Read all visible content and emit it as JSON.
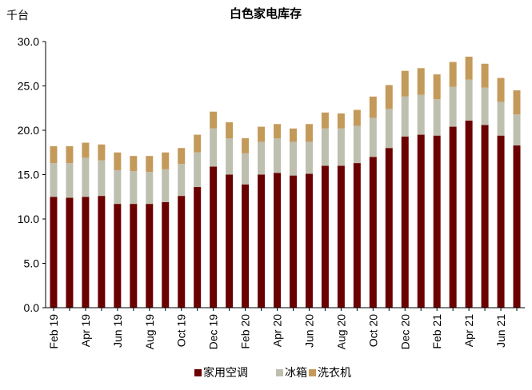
{
  "chart_data": {
    "type": "bar",
    "stacked": true,
    "title": "白色家电库存",
    "unit_label": "千台",
    "ylim": [
      0,
      30
    ],
    "y_ticks": [
      "0.0",
      "5.0",
      "10.0",
      "15.0",
      "20.0",
      "25.0",
      "30.0"
    ],
    "grid": false,
    "legend_position": "bottom",
    "categories": [
      "Feb 19",
      "Mar 19",
      "Apr 19",
      "May 19",
      "Jun 19",
      "Jul 19",
      "Aug 19",
      "Sep 19",
      "Oct 19",
      "Nov 19",
      "Dec 19",
      "Jan 20",
      "Feb 20",
      "Mar 20",
      "Apr 20",
      "May 20",
      "Jun 20",
      "Jul 20",
      "Aug 20",
      "Sep 20",
      "Oct 20",
      "Nov 20",
      "Dec 20",
      "Jan 21",
      "Feb 21",
      "Mar 21",
      "Apr 21",
      "May 21",
      "Jun 21",
      "Jul 21"
    ],
    "x_tick_labels": [
      "Feb 19",
      "Apr 19",
      "Jun 19",
      "Aug 19",
      "Oct 19",
      "Dec 19",
      "Feb 20",
      "Apr 20",
      "Jun 20",
      "Aug 20",
      "Oct 20",
      "Dec 20",
      "Feb 21",
      "Apr 21",
      "Jun 21"
    ],
    "series": [
      {
        "name": "家用空调",
        "color": "#6b0000",
        "values": [
          12.5,
          12.4,
          12.5,
          12.6,
          11.7,
          11.7,
          11.7,
          11.9,
          12.6,
          13.6,
          15.9,
          15.0,
          13.9,
          15.0,
          15.2,
          14.9,
          15.1,
          16.0,
          16.0,
          16.3,
          17.0,
          18.0,
          19.3,
          19.5,
          19.4,
          20.4,
          21.1,
          20.6,
          19.4,
          18.3
        ]
      },
      {
        "name": "冰箱",
        "color": "#bfbfaf",
        "values": [
          3.8,
          3.9,
          4.4,
          4.0,
          3.8,
          3.7,
          3.6,
          3.7,
          3.6,
          3.9,
          4.3,
          4.1,
          3.5,
          3.7,
          3.9,
          3.8,
          3.6,
          4.2,
          4.2,
          4.2,
          4.4,
          4.4,
          4.5,
          4.5,
          4.1,
          4.5,
          4.6,
          4.2,
          3.8,
          3.5
        ]
      },
      {
        "name": "洗衣机",
        "color": "#c49a5b",
        "values": [
          1.9,
          1.9,
          1.7,
          1.8,
          2.0,
          1.7,
          1.8,
          1.9,
          1.8,
          2.0,
          1.9,
          1.8,
          1.7,
          1.7,
          1.6,
          1.5,
          2.0,
          1.8,
          1.7,
          1.8,
          2.4,
          2.7,
          2.9,
          3.0,
          2.8,
          2.8,
          2.6,
          2.7,
          2.7,
          2.7
        ]
      }
    ]
  }
}
